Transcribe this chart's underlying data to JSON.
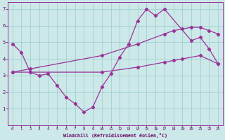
{
  "background_color": "#cce8e8",
  "line_color": "#993399",
  "grid_color": "#99cccc",
  "xlabel": "Windchill (Refroidissement éolien,°C)",
  "xlabel_color": "#660066",
  "xlim": [
    -0.5,
    23.5
  ],
  "ylim": [
    0,
    7.4
  ],
  "xticks": [
    0,
    1,
    2,
    3,
    4,
    5,
    6,
    7,
    8,
    9,
    10,
    11,
    12,
    13,
    14,
    15,
    16,
    17,
    18,
    19,
    20,
    21,
    22,
    23
  ],
  "yticks": [
    1,
    2,
    3,
    4,
    5,
    6,
    7
  ],
  "line1_x": [
    0,
    1,
    2,
    3,
    4,
    5,
    6,
    7,
    8,
    9,
    10,
    11,
    12,
    13,
    14,
    15,
    16,
    17,
    20,
    21,
    22,
    23
  ],
  "line1_y": [
    4.9,
    4.4,
    3.2,
    3.0,
    3.1,
    2.4,
    1.7,
    1.3,
    0.8,
    1.1,
    2.3,
    3.1,
    4.1,
    4.9,
    6.3,
    7.0,
    6.6,
    7.0,
    5.1,
    5.3,
    4.6,
    3.7
  ],
  "line2_x": [
    0,
    2,
    10,
    14,
    17,
    18,
    19,
    21,
    23
  ],
  "line2_y": [
    3.2,
    3.2,
    3.2,
    3.5,
    3.8,
    3.9,
    4.0,
    4.2,
    3.7
  ],
  "line3_x": [
    0,
    2,
    10,
    14,
    17,
    18,
    19,
    20,
    21,
    22,
    23
  ],
  "line3_y": [
    3.2,
    3.4,
    4.2,
    4.9,
    5.5,
    5.7,
    5.8,
    5.9,
    5.9,
    5.7,
    5.5
  ]
}
